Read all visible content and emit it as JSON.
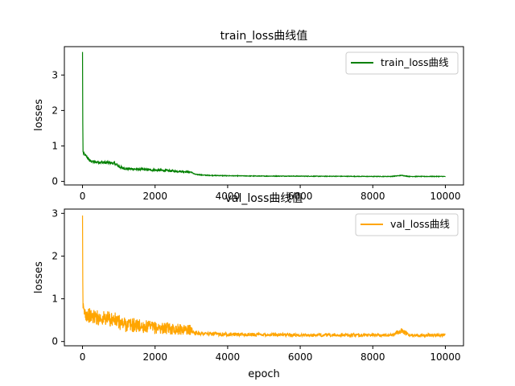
{
  "chart_data": [
    {
      "type": "line",
      "title": "train_loss曲线值",
      "xlabel": "",
      "ylabel": "losses",
      "xlim": [
        -500,
        10500
      ],
      "ylim": [
        -0.1,
        3.8
      ],
      "xticks": [
        0,
        2000,
        4000,
        6000,
        8000,
        10000
      ],
      "yticks": [
        0,
        1,
        2,
        3
      ],
      "grid": false,
      "legend_position": "top-right",
      "series": [
        {
          "name": "train_loss曲线",
          "color": "#008000",
          "x": [
            0,
            10,
            30,
            60,
            100,
            200,
            300,
            400,
            500,
            600,
            700,
            800,
            900,
            1000,
            1100,
            1200,
            1400,
            1600,
            1800,
            2000,
            2200,
            2400,
            2600,
            2800,
            3000,
            3100,
            3300,
            3500,
            4000,
            4500,
            5000,
            5500,
            6000,
            6500,
            7000,
            7500,
            8000,
            8500,
            8800,
            9000,
            9500,
            10000
          ],
          "y": [
            3.65,
            0.85,
            0.78,
            0.75,
            0.72,
            0.58,
            0.55,
            0.55,
            0.54,
            0.53,
            0.53,
            0.52,
            0.5,
            0.42,
            0.38,
            0.36,
            0.35,
            0.34,
            0.33,
            0.32,
            0.31,
            0.3,
            0.29,
            0.28,
            0.26,
            0.2,
            0.18,
            0.17,
            0.16,
            0.155,
            0.15,
            0.15,
            0.148,
            0.145,
            0.145,
            0.142,
            0.14,
            0.14,
            0.17,
            0.14,
            0.14,
            0.14
          ],
          "noise": 0.04
        }
      ]
    },
    {
      "type": "line",
      "title": "val_loss曲线值",
      "xlabel": "epoch",
      "ylabel": "losses",
      "xlim": [
        -500,
        10500
      ],
      "ylim": [
        -0.1,
        3.1
      ],
      "xticks": [
        0,
        2000,
        4000,
        6000,
        8000,
        10000
      ],
      "yticks": [
        0,
        1,
        2,
        3
      ],
      "grid": false,
      "legend_position": "top-right",
      "series": [
        {
          "name": "val_loss曲线",
          "color": "#FFA500",
          "x": [
            0,
            10,
            30,
            60,
            100,
            200,
            300,
            400,
            500,
            600,
            700,
            800,
            900,
            1000,
            1100,
            1200,
            1400,
            1600,
            1800,
            2000,
            2200,
            2400,
            2600,
            2800,
            3000,
            3100,
            3300,
            3500,
            4000,
            4500,
            5000,
            5500,
            6000,
            6500,
            7000,
            7500,
            8000,
            8500,
            8800,
            9000,
            9500,
            10000
          ],
          "y": [
            2.95,
            0.8,
            0.7,
            0.68,
            0.65,
            0.6,
            0.58,
            0.56,
            0.55,
            0.54,
            0.53,
            0.52,
            0.5,
            0.45,
            0.42,
            0.4,
            0.38,
            0.36,
            0.34,
            0.32,
            0.31,
            0.3,
            0.29,
            0.28,
            0.27,
            0.2,
            0.19,
            0.18,
            0.17,
            0.16,
            0.16,
            0.16,
            0.15,
            0.15,
            0.15,
            0.15,
            0.15,
            0.15,
            0.25,
            0.15,
            0.15,
            0.15
          ],
          "noise": 0.18
        }
      ]
    }
  ]
}
